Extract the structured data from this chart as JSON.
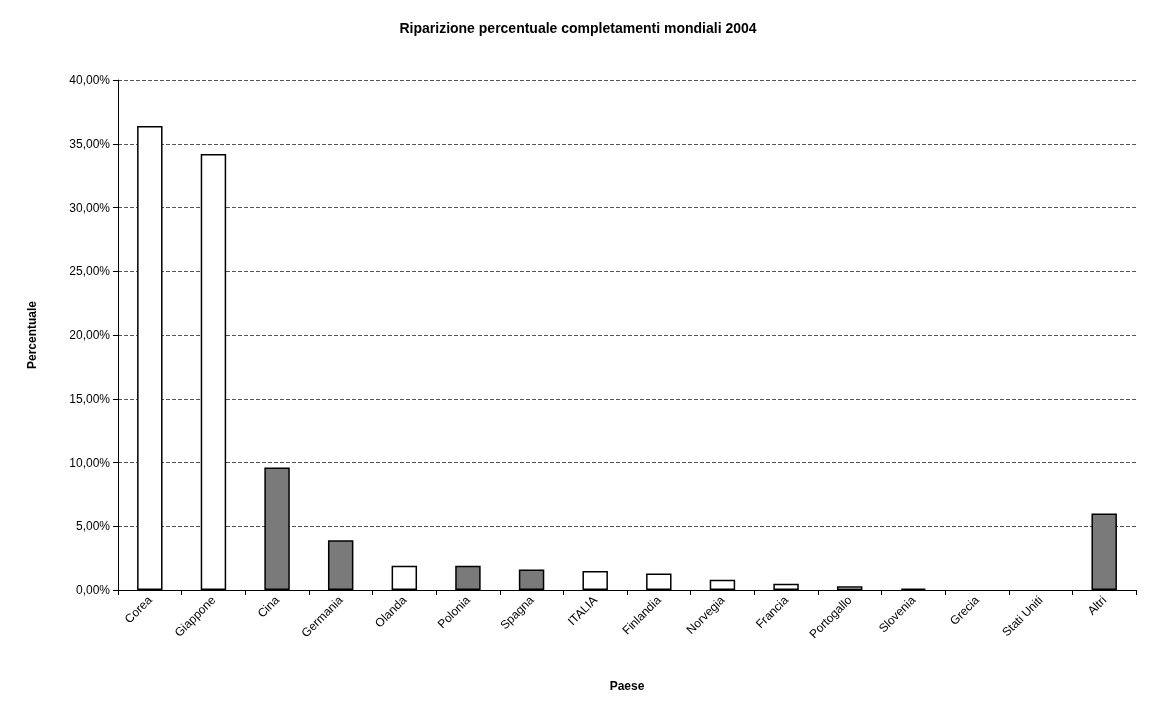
{
  "chart_data": {
    "type": "bar",
    "title": "Riparizione percentuale completamenti mondiali 2004",
    "xlabel": "Paese",
    "ylabel": "Percentuale",
    "categories": [
      "Corea",
      "Giappone",
      "Cina",
      "Germania",
      "Olanda",
      "Polonia",
      "Spagna",
      "ITALIA",
      "Finlandia",
      "Norvegia",
      "Francia",
      "Portogallo",
      "Slovenia",
      "Grecia",
      "Stati Uniti",
      "Altri"
    ],
    "values": [
      36.4,
      34.2,
      9.6,
      3.9,
      1.9,
      1.9,
      1.6,
      1.5,
      1.3,
      0.8,
      0.5,
      0.3,
      0.1,
      0,
      0,
      6.0
    ],
    "colors": [
      "#ffffff",
      "#ffffff",
      "#7a7a7a",
      "#7a7a7a",
      "#ffffff",
      "#7a7a7a",
      "#7a7a7a",
      "#ffffff",
      "#ffffff",
      "#ffffff",
      "#ffffff",
      "#ffffff",
      "#000000",
      "#ffffff",
      "#ffffff",
      "#7a7a7a"
    ],
    "ylim": [
      0,
      40
    ],
    "yticks": [
      {
        "value": 0,
        "label": "0,00%"
      },
      {
        "value": 5,
        "label": "5,00%"
      },
      {
        "value": 10,
        "label": "10,00%"
      },
      {
        "value": 15,
        "label": "15,00%"
      },
      {
        "value": 20,
        "label": "20,00%"
      },
      {
        "value": 25,
        "label": "25,00%"
      },
      {
        "value": 30,
        "label": "30,00%"
      },
      {
        "value": 35,
        "label": "35,00%"
      },
      {
        "value": 40,
        "label": "40,00%"
      }
    ],
    "grid": "y"
  }
}
